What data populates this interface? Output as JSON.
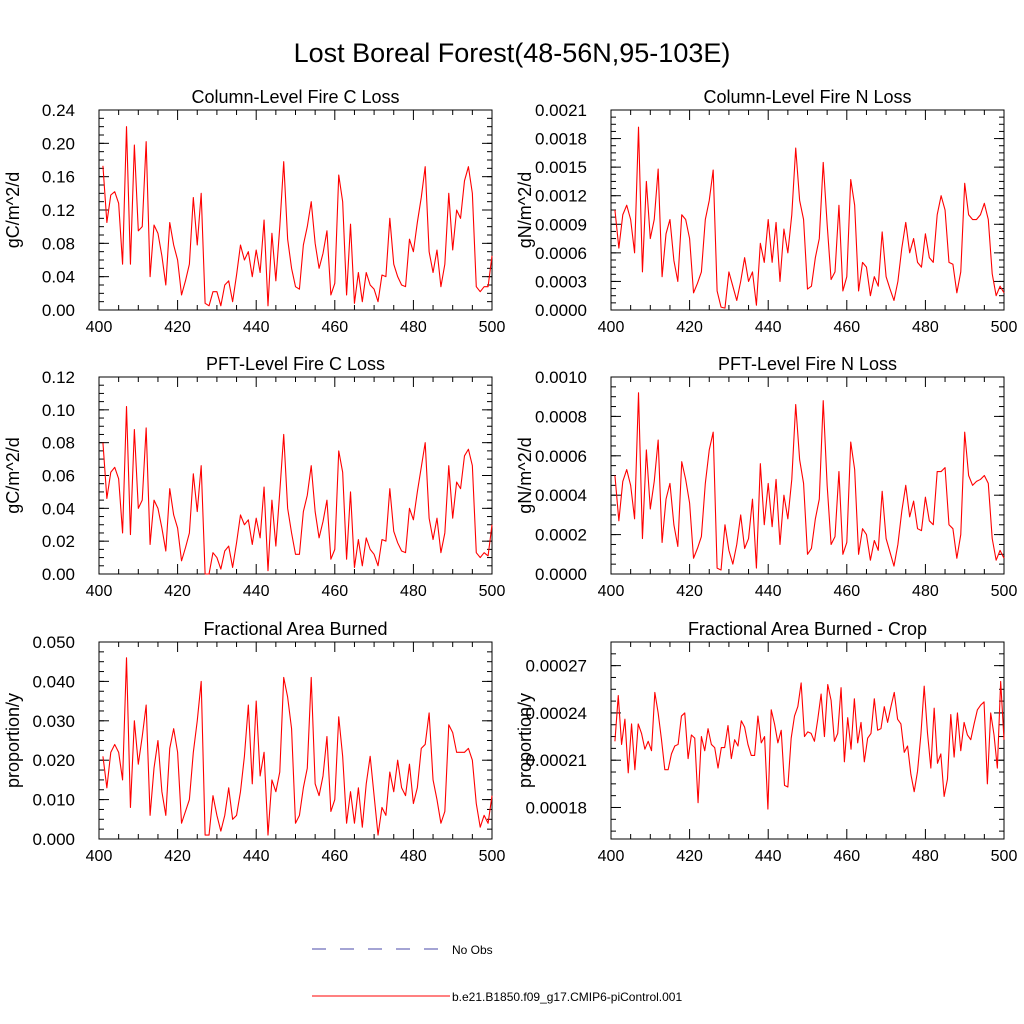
{
  "page_title": "Lost Boreal Forest(48-56N,95-103E)",
  "colors": {
    "series": "#ff0000",
    "obs": "#4a4aa8",
    "axis": "#000000"
  },
  "legend": {
    "items": [
      {
        "label": "No Obs",
        "style": "dashed",
        "color": "#4a4aa8"
      },
      {
        "label": "b.e21.B1850.f09_g17.CMIP6-piControl.001",
        "style": "solid",
        "color": "#ff0000"
      }
    ]
  },
  "chart_data": [
    {
      "type": "line",
      "title": "Column-Level Fire C Loss",
      "ylabel": "gC/m^2/d",
      "xlabel": "",
      "xlim": [
        400,
        500
      ],
      "ylim": [
        0,
        0.24
      ],
      "xticks": [
        400,
        420,
        440,
        460,
        480,
        500
      ],
      "xtick_labels": [
        "400",
        "420",
        "440",
        "460",
        "480",
        "500"
      ],
      "yticks": [
        0,
        0.04,
        0.08,
        0.12,
        0.16,
        0.2,
        0.24
      ],
      "ytick_labels": [
        "0.00",
        "0.04",
        "0.08",
        "0.12",
        "0.16",
        "0.20",
        "0.24"
      ],
      "x_start": 401,
      "series": [
        {
          "name": "b.e21.B1850.f09_g17.CMIP6-piControl.001",
          "values": [
            0.173,
            0.105,
            0.138,
            0.142,
            0.128,
            0.055,
            0.22,
            0.055,
            0.198,
            0.095,
            0.1,
            0.202,
            0.04,
            0.102,
            0.092,
            0.065,
            0.03,
            0.105,
            0.078,
            0.06,
            0.018,
            0.035,
            0.055,
            0.135,
            0.078,
            0.14,
            0.008,
            0.005,
            0.022,
            0.022,
            0.005,
            0.03,
            0.035,
            0.01,
            0.042,
            0.078,
            0.06,
            0.07,
            0.04,
            0.072,
            0.045,
            0.108,
            0.005,
            0.092,
            0.035,
            0.1,
            0.178,
            0.085,
            0.05,
            0.028,
            0.025,
            0.078,
            0.1,
            0.13,
            0.08,
            0.05,
            0.068,
            0.095,
            0.018,
            0.032,
            0.162,
            0.13,
            0.018,
            0.103,
            0.008,
            0.045,
            0.01,
            0.045,
            0.03,
            0.025,
            0.01,
            0.042,
            0.04,
            0.11,
            0.055,
            0.04,
            0.03,
            0.028,
            0.085,
            0.07,
            0.105,
            0.135,
            0.172,
            0.07,
            0.045,
            0.072,
            0.028,
            0.055,
            0.14,
            0.072,
            0.12,
            0.11,
            0.155,
            0.172,
            0.14,
            0.028,
            0.022,
            0.028,
            0.028,
            0.065
          ]
        }
      ]
    },
    {
      "type": "line",
      "title": "Column-Level Fire N Loss",
      "ylabel": "gN/m^2/d",
      "xlabel": "",
      "xlim": [
        400,
        500
      ],
      "ylim": [
        0,
        0.0021
      ],
      "xticks": [
        400,
        420,
        440,
        460,
        480,
        500
      ],
      "xtick_labels": [
        "400",
        "420",
        "440",
        "460",
        "480",
        "500"
      ],
      "yticks": [
        0,
        0.0003,
        0.0006,
        0.0009,
        0.0012,
        0.0015,
        0.0018,
        0.0021
      ],
      "ytick_labels": [
        "0.0000",
        "0.0003",
        "0.0006",
        "0.0009",
        "0.0012",
        "0.0015",
        "0.0018",
        "0.0021"
      ],
      "x_start": 401,
      "series": [
        {
          "name": "b.e21.B1850.f09_g17.CMIP6-piControl.001",
          "values": [
            0.00105,
            0.00065,
            0.001,
            0.0011,
            0.00095,
            0.0006,
            0.00192,
            0.0004,
            0.00135,
            0.00075,
            0.00095,
            0.00148,
            0.00035,
            0.0008,
            0.00095,
            0.00052,
            0.0003,
            0.001,
            0.00095,
            0.00075,
            0.00018,
            0.00028,
            0.0004,
            0.00095,
            0.00115,
            0.00147,
            0.0002,
            3e-05,
            2e-05,
            0.0004,
            0.00025,
            0.0001,
            0.0003,
            0.00055,
            0.0003,
            0.0004,
            5e-05,
            0.0007,
            0.0005,
            0.00095,
            0.0005,
            0.00092,
            0.0003,
            0.00085,
            0.0006,
            0.001,
            0.0017,
            0.00115,
            0.00095,
            0.00022,
            0.00025,
            0.00055,
            0.00075,
            0.00155,
            0.0009,
            0.00032,
            0.0004,
            0.0011,
            0.0002,
            0.00035,
            0.00137,
            0.0011,
            0.0002,
            0.0005,
            0.00045,
            0.00015,
            0.00035,
            0.00025,
            0.00082,
            0.00035,
            0.00022,
            0.0001,
            0.0003,
            0.00065,
            0.00092,
            0.0006,
            0.00075,
            0.0005,
            0.00045,
            0.0008,
            0.00055,
            0.0005,
            0.001,
            0.0012,
            0.00105,
            0.0005,
            0.00048,
            0.00018,
            0.0004,
            0.00133,
            0.001,
            0.00095,
            0.00095,
            0.001,
            0.00112,
            0.00095,
            0.00038,
            0.00015,
            0.00025,
            0.00018
          ]
        }
      ]
    },
    {
      "type": "line",
      "title": "PFT-Level Fire C Loss",
      "ylabel": "gC/m^2/d",
      "xlabel": "",
      "xlim": [
        400,
        500
      ],
      "ylim": [
        0,
        0.12
      ],
      "xticks": [
        400,
        420,
        440,
        460,
        480,
        500
      ],
      "xtick_labels": [
        "400",
        "420",
        "440",
        "460",
        "480",
        "500"
      ],
      "yticks": [
        0,
        0.02,
        0.04,
        0.06,
        0.08,
        0.1,
        0.12
      ],
      "ytick_labels": [
        "0.00",
        "0.02",
        "0.04",
        "0.06",
        "0.08",
        "0.10",
        "0.12"
      ],
      "x_start": 401,
      "series": [
        {
          "name": "b.e21.B1850.f09_g17.CMIP6-piControl.001",
          "values": [
            0.08,
            0.046,
            0.062,
            0.065,
            0.058,
            0.025,
            0.102,
            0.024,
            0.088,
            0.04,
            0.045,
            0.089,
            0.018,
            0.045,
            0.04,
            0.028,
            0.014,
            0.052,
            0.036,
            0.028,
            0.008,
            0.016,
            0.025,
            0.061,
            0.038,
            0.066,
            0.0,
            0.0,
            0.013,
            0.01,
            0.003,
            0.014,
            0.017,
            0.004,
            0.019,
            0.036,
            0.03,
            0.033,
            0.018,
            0.034,
            0.022,
            0.053,
            0.002,
            0.045,
            0.017,
            0.05,
            0.085,
            0.04,
            0.025,
            0.012,
            0.012,
            0.038,
            0.048,
            0.066,
            0.038,
            0.022,
            0.032,
            0.045,
            0.009,
            0.015,
            0.075,
            0.062,
            0.009,
            0.05,
            0.004,
            0.021,
            0.005,
            0.022,
            0.015,
            0.012,
            0.005,
            0.021,
            0.02,
            0.052,
            0.026,
            0.019,
            0.014,
            0.013,
            0.04,
            0.033,
            0.05,
            0.065,
            0.08,
            0.034,
            0.021,
            0.034,
            0.013,
            0.025,
            0.066,
            0.034,
            0.056,
            0.052,
            0.072,
            0.076,
            0.066,
            0.013,
            0.01,
            0.013,
            0.011,
            0.03
          ]
        }
      ]
    },
    {
      "type": "line",
      "title": "PFT-Level Fire N Loss",
      "ylabel": "gN/m^2/d",
      "xlabel": "",
      "xlim": [
        400,
        500
      ],
      "ylim": [
        0,
        0.001
      ],
      "xticks": [
        400,
        420,
        440,
        460,
        480,
        500
      ],
      "xtick_labels": [
        "400",
        "420",
        "440",
        "460",
        "480",
        "500"
      ],
      "yticks": [
        0,
        0.0002,
        0.0004,
        0.0006,
        0.0008,
        0.001
      ],
      "ytick_labels": [
        "0.0000",
        "0.0002",
        "0.0004",
        "0.0006",
        "0.0008",
        "0.0010"
      ],
      "x_start": 401,
      "series": [
        {
          "name": "b.e21.B1850.f09_g17.CMIP6-piControl.001",
          "values": [
            0.0005,
            0.00027,
            0.00047,
            0.00053,
            0.00045,
            0.00028,
            0.00092,
            0.00018,
            0.00063,
            0.00033,
            0.00047,
            0.00068,
            0.00016,
            0.00038,
            0.00046,
            0.00025,
            0.00014,
            0.00057,
            0.00048,
            0.00036,
            8e-05,
            0.00013,
            0.00019,
            0.00046,
            0.00063,
            0.00072,
            3e-05,
            2e-05,
            0.00025,
            0.00012,
            5e-05,
            0.00015,
            0.0003,
            0.00013,
            0.00018,
            0.00038,
            3e-05,
            0.00056,
            0.00025,
            0.00046,
            0.00024,
            0.00048,
            0.00015,
            0.0004,
            0.00028,
            0.00048,
            0.00086,
            0.00058,
            0.00046,
            0.0001,
            0.00013,
            0.00028,
            0.00038,
            0.00088,
            0.00045,
            0.00015,
            0.00019,
            0.00052,
            0.0001,
            0.00016,
            0.00067,
            0.00053,
            0.0001,
            0.00023,
            0.0002,
            7e-05,
            0.00017,
            0.00012,
            0.00042,
            0.00018,
            0.00011,
            4e-05,
            0.00015,
            0.00032,
            0.00045,
            0.00029,
            0.00037,
            0.00023,
            0.00022,
            0.00039,
            0.00027,
            0.00025,
            0.00052,
            0.00052,
            0.00054,
            0.00025,
            0.00023,
            8e-05,
            0.0002,
            0.00072,
            0.0005,
            0.00045,
            0.00047,
            0.00048,
            0.0005,
            0.00046,
            0.00018,
            7e-05,
            0.00012,
            8e-05
          ]
        }
      ]
    },
    {
      "type": "line",
      "title": "Fractional Area Burned",
      "ylabel": "proportion/y",
      "xlabel": "",
      "xlim": [
        400,
        500
      ],
      "ylim": [
        0,
        0.05
      ],
      "xticks": [
        400,
        420,
        440,
        460,
        480,
        500
      ],
      "xtick_labels": [
        "400",
        "420",
        "440",
        "460",
        "480",
        "500"
      ],
      "yticks": [
        0,
        0.01,
        0.02,
        0.03,
        0.04,
        0.05
      ],
      "ytick_labels": [
        "0.000",
        "0.010",
        "0.020",
        "0.030",
        "0.040",
        "0.050"
      ],
      "x_start": 401,
      "series": [
        {
          "name": "b.e21.B1850.f09_g17.CMIP6-piControl.001",
          "values": [
            0.021,
            0.013,
            0.022,
            0.024,
            0.022,
            0.015,
            0.046,
            0.008,
            0.03,
            0.019,
            0.026,
            0.034,
            0.006,
            0.018,
            0.025,
            0.012,
            0.006,
            0.023,
            0.028,
            0.022,
            0.004,
            0.007,
            0.01,
            0.022,
            0.03,
            0.04,
            0.001,
            0.001,
            0.011,
            0.006,
            0.002,
            0.006,
            0.013,
            0.005,
            0.006,
            0.012,
            0.021,
            0.034,
            0.014,
            0.035,
            0.016,
            0.022,
            0.001,
            0.015,
            0.012,
            0.017,
            0.041,
            0.036,
            0.028,
            0.004,
            0.006,
            0.013,
            0.018,
            0.041,
            0.014,
            0.011,
            0.016,
            0.026,
            0.007,
            0.01,
            0.031,
            0.021,
            0.004,
            0.012,
            0.004,
            0.013,
            0.003,
            0.014,
            0.021,
            0.011,
            0.001,
            0.008,
            0.006,
            0.017,
            0.012,
            0.02,
            0.013,
            0.011,
            0.019,
            0.009,
            0.013,
            0.023,
            0.024,
            0.032,
            0.015,
            0.01,
            0.004,
            0.007,
            0.029,
            0.027,
            0.022,
            0.022,
            0.022,
            0.023,
            0.02,
            0.009,
            0.003,
            0.006,
            0.004,
            0.011
          ]
        }
      ]
    },
    {
      "type": "line",
      "title": "Fractional Area Burned - Crop",
      "ylabel": "proportion/y",
      "xlabel": "",
      "xlim": [
        400,
        500
      ],
      "ylim": [
        0.00016,
        0.000285
      ],
      "xticks": [
        400,
        420,
        440,
        460,
        480,
        500
      ],
      "xtick_labels": [
        "400",
        "420",
        "440",
        "460",
        "480",
        "500"
      ],
      "yticks": [
        0.00018,
        0.00021,
        0.00024,
        0.00027
      ],
      "ytick_labels": [
        "0.00018",
        "0.00021",
        "0.00024",
        "0.00027"
      ],
      "x_start": 401,
      "series": [
        {
          "name": "b.e21.B1850.f09_g17.CMIP6-piControl.001",
          "values": [
            0.000222,
            0.000251,
            0.00022,
            0.000236,
            0.000202,
            0.000233,
            0.000204,
            0.000233,
            0.000227,
            0.000217,
            0.000222,
            0.000216,
            0.000253,
            0.00024,
            0.000223,
            0.000204,
            0.000204,
            0.000214,
            0.000219,
            0.00022,
            0.000238,
            0.00024,
            0.000211,
            0.000226,
            0.000224,
            0.000183,
            0.000225,
            0.000216,
            0.00023,
            0.00022,
            0.000218,
            0.000205,
            0.000218,
            0.000218,
            0.000232,
            0.000211,
            0.000223,
            0.000219,
            0.000235,
            0.000231,
            0.00022,
            0.000213,
            0.000213,
            0.000238,
            0.000221,
            0.000225,
            0.000179,
            0.000242,
            0.000233,
            0.000221,
            0.000229,
            0.000194,
            0.000193,
            0.000224,
            0.000238,
            0.000244,
            0.000259,
            0.000225,
            0.000228,
            0.000227,
            0.000222,
            0.000236,
            0.000252,
            0.000225,
            0.000258,
            0.000248,
            0.000222,
            0.000227,
            0.000256,
            0.000209,
            0.000237,
            0.000217,
            0.000249,
            0.000221,
            0.000234,
            0.000209,
            0.000224,
            0.000227,
            0.000249,
            0.000229,
            0.00023,
            0.000244,
            0.000234,
            0.000244,
            0.000253,
            0.000236,
            0.000233,
            0.000215,
            0.000219,
            0.000201,
            0.00019,
            0.000203,
            0.000226,
            0.000257,
            0.000227,
            0.000205,
            0.000243,
            0.000208,
            0.000214,
            0.000187,
            0.000198,
            0.000239,
            0.000212,
            0.00024,
            0.000216,
            0.000234,
            0.000226,
            0.000223,
            0.000233,
            0.000242,
            0.000245,
            0.000247,
            0.000195,
            0.00024,
            0.000226,
            0.000205,
            0.00026,
            0.000223
          ]
        }
      ]
    }
  ]
}
